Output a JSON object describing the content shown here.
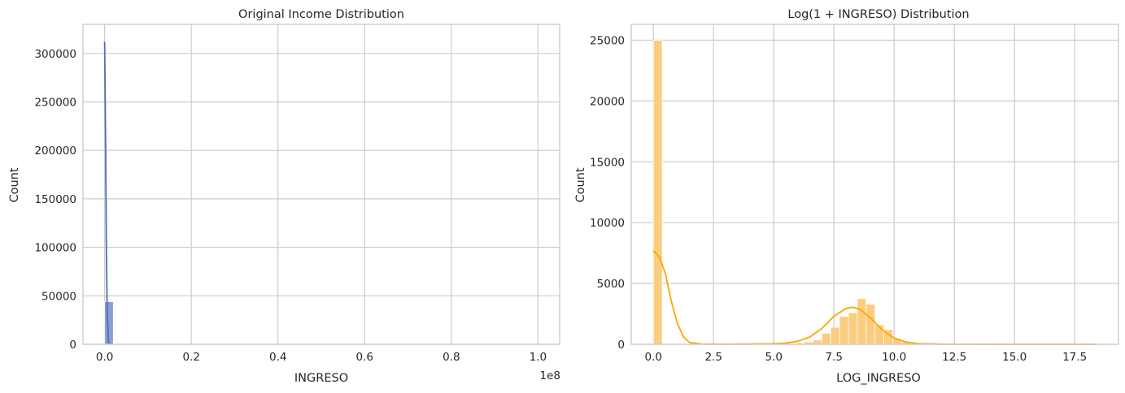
{
  "chart_data": [
    {
      "type": "bar",
      "title": "Original Income Distribution",
      "xlabel": "INGRESO",
      "ylabel": "Count",
      "x_offset_label": "1e8",
      "xlim": [
        -0.05,
        1.05
      ],
      "ylim": [
        0,
        330000
      ],
      "xticks": [
        0.0,
        0.2,
        0.4,
        0.6,
        0.8,
        1.0
      ],
      "xtick_labels": [
        "0.0",
        "0.2",
        "0.4",
        "0.6",
        "0.8",
        "1.0"
      ],
      "yticks": [
        0,
        50000,
        100000,
        150000,
        200000,
        250000,
        300000
      ],
      "ytick_labels": [
        "0",
        "50000",
        "100000",
        "150000",
        "200000",
        "250000",
        "300000"
      ],
      "grid": true,
      "bar_color": "#8c9fd2",
      "kde_color": "#4c72b0",
      "bars": [
        {
          "x0": 0.0,
          "x1": 0.02,
          "count": 44000
        }
      ],
      "kde": [
        {
          "x": 0.0,
          "y": 312000
        },
        {
          "x": 0.002,
          "y": 220000
        },
        {
          "x": 0.004,
          "y": 100000
        },
        {
          "x": 0.006,
          "y": 30000
        },
        {
          "x": 0.009,
          "y": 2000
        },
        {
          "x": 0.012,
          "y": 0
        }
      ]
    },
    {
      "type": "bar",
      "title": "Log(1 + INGRESO) Distribution",
      "xlabel": "LOG_INGRESO",
      "ylabel": "Count",
      "xlim": [
        -0.92,
        19.32
      ],
      "ylim": [
        0,
        26300
      ],
      "xticks": [
        0.0,
        2.5,
        5.0,
        7.5,
        10.0,
        12.5,
        15.0,
        17.5
      ],
      "xtick_labels": [
        "0.0",
        "2.5",
        "5.0",
        "7.5",
        "10.0",
        "12.5",
        "15.0",
        "17.5"
      ],
      "yticks": [
        0,
        5000,
        10000,
        15000,
        20000,
        25000
      ],
      "ytick_labels": [
        "0",
        "5000",
        "10000",
        "15000",
        "20000",
        "25000"
      ],
      "grid": true,
      "bar_color": "#fbcd7f",
      "kde_color": "#ffa500",
      "bin_width": 0.368,
      "bars": [
        {
          "x0": 0.0,
          "count": 25000
        },
        {
          "x0": 4.787,
          "count": 30
        },
        {
          "x0": 5.155,
          "count": 50
        },
        {
          "x0": 5.523,
          "count": 80
        },
        {
          "x0": 5.892,
          "count": 120
        },
        {
          "x0": 6.26,
          "count": 200
        },
        {
          "x0": 6.628,
          "count": 350
        },
        {
          "x0": 6.997,
          "count": 900
        },
        {
          "x0": 7.365,
          "count": 1400
        },
        {
          "x0": 7.733,
          "count": 2300
        },
        {
          "x0": 8.102,
          "count": 2600
        },
        {
          "x0": 8.47,
          "count": 3750
        },
        {
          "x0": 8.838,
          "count": 3300
        },
        {
          "x0": 9.206,
          "count": 1600
        },
        {
          "x0": 9.575,
          "count": 1200
        },
        {
          "x0": 9.943,
          "count": 450
        },
        {
          "x0": 10.311,
          "count": 200
        },
        {
          "x0": 10.68,
          "count": 80
        },
        {
          "x0": 11.048,
          "count": 40
        },
        {
          "x0": 11.416,
          "count": 20
        }
      ],
      "kde": [
        {
          "x": 0.0,
          "y": 7700
        },
        {
          "x": 0.25,
          "y": 7200
        },
        {
          "x": 0.5,
          "y": 5800
        },
        {
          "x": 0.75,
          "y": 3500
        },
        {
          "x": 1.0,
          "y": 1700
        },
        {
          "x": 1.25,
          "y": 600
        },
        {
          "x": 1.5,
          "y": 150
        },
        {
          "x": 2.0,
          "y": 20
        },
        {
          "x": 3.0,
          "y": 10
        },
        {
          "x": 4.0,
          "y": 20
        },
        {
          "x": 5.0,
          "y": 50
        },
        {
          "x": 5.5,
          "y": 100
        },
        {
          "x": 6.0,
          "y": 250
        },
        {
          "x": 6.5,
          "y": 600
        },
        {
          "x": 7.0,
          "y": 1300
        },
        {
          "x": 7.5,
          "y": 2300
        },
        {
          "x": 8.0,
          "y": 2950
        },
        {
          "x": 8.3,
          "y": 3050
        },
        {
          "x": 8.6,
          "y": 2850
        },
        {
          "x": 9.0,
          "y": 2200
        },
        {
          "x": 9.5,
          "y": 1200
        },
        {
          "x": 10.0,
          "y": 500
        },
        {
          "x": 10.5,
          "y": 180
        },
        {
          "x": 11.0,
          "y": 60
        },
        {
          "x": 12.0,
          "y": 10
        },
        {
          "x": 15.0,
          "y": 0
        },
        {
          "x": 18.4,
          "y": 0
        }
      ]
    }
  ]
}
